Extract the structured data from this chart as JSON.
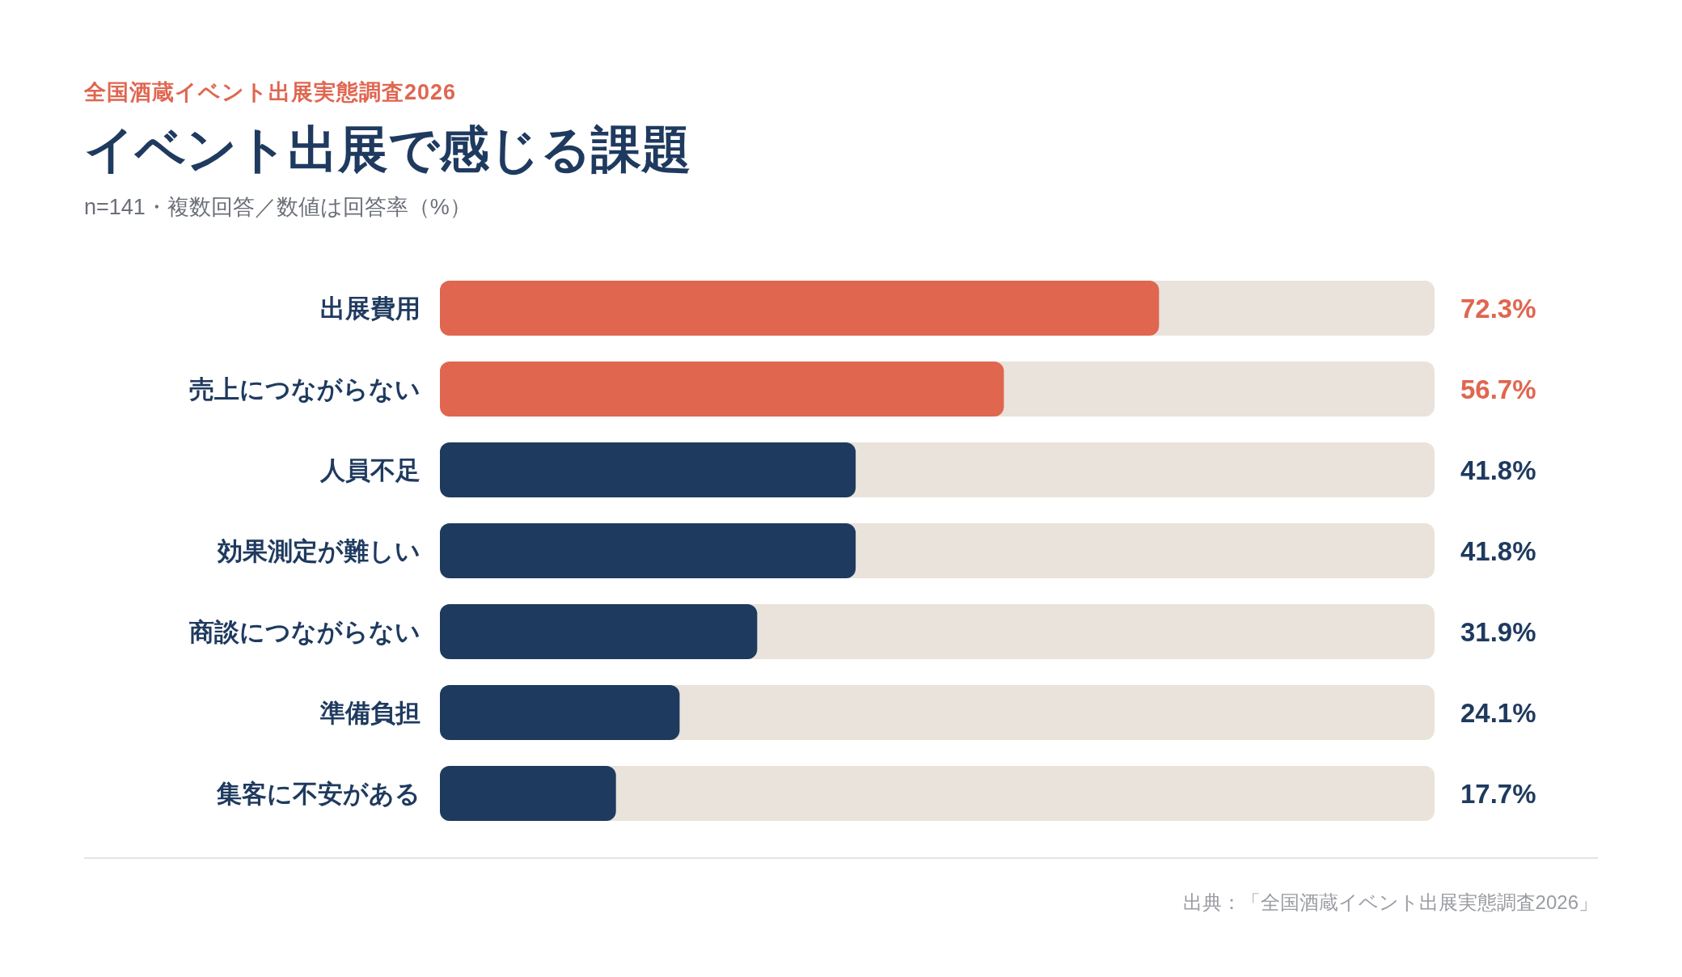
{
  "chart_data": {
    "type": "bar",
    "orientation": "horizontal",
    "title": "イベント出展で感じる課題",
    "subtitle": "n=141・複数回答／数値は回答率（%）",
    "annotations": [
      "全国酒蔵イベント出展実態調査2026",
      "出典：「全国酒蔵イベント出展実態調査2026」"
    ],
    "categories": [
      "出展費用",
      "売上につながらない",
      "人員不足",
      "効果測定が難しい",
      "商談につながらない",
      "準備負担",
      "集客に不安がある"
    ],
    "values": [
      72.3,
      56.7,
      41.8,
      41.8,
      31.9,
      24.1,
      17.7
    ],
    "value_labels": [
      "72.3%",
      "56.7%",
      "41.8%",
      "41.8%",
      "31.9%",
      "24.1%",
      "17.7%"
    ],
    "colors": [
      "#e06650",
      "#e06650",
      "#1f3a5f",
      "#1f3a5f",
      "#1f3a5f",
      "#1f3a5f",
      "#1f3a5f"
    ],
    "xlim": [
      0,
      100
    ],
    "tick_labels": "y",
    "grid": false,
    "legend": false
  }
}
